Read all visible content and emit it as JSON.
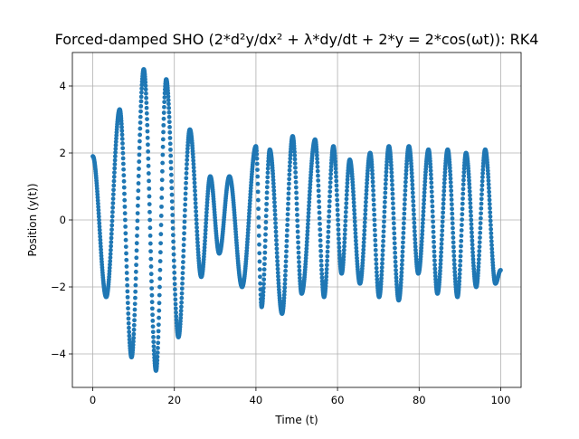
{
  "chart_data": {
    "type": "scatter",
    "title": "Forced-damped SHO (2*d²y/dx² + λ*dy/dt + 2*y = 2*cos(ωt)): RK4",
    "xlabel": "Time (t)",
    "ylabel": "Position (y(t))",
    "xlim": [
      -5,
      105
    ],
    "ylim": [
      -5,
      5
    ],
    "x_ticks": [
      0,
      20,
      40,
      60,
      80,
      100
    ],
    "y_ticks": [
      -4,
      -2,
      0,
      2,
      4
    ],
    "x_tick_labels": [
      "0",
      "20",
      "40",
      "60",
      "80",
      "100"
    ],
    "y_tick_labels": [
      "−4",
      "−2",
      "0",
      "2",
      "4"
    ],
    "grid": true,
    "legend": "none",
    "series": [
      {
        "color": "#1f77b4",
        "extrema": [
          [
            0.0,
            1.9
          ],
          [
            3.3,
            -2.3
          ],
          [
            6.6,
            3.3
          ],
          [
            9.5,
            -4.1
          ],
          [
            12.5,
            4.5
          ],
          [
            15.5,
            -4.5
          ],
          [
            18.0,
            4.2
          ],
          [
            21.0,
            -3.5
          ],
          [
            23.8,
            2.7
          ],
          [
            26.6,
            -1.7
          ],
          [
            28.8,
            1.3
          ],
          [
            31.0,
            -1.0
          ],
          [
            33.5,
            1.3
          ],
          [
            36.6,
            -2.0
          ],
          [
            40.0,
            2.2
          ],
          [
            41.4,
            -2.6
          ],
          [
            43.4,
            2.1
          ],
          [
            46.4,
            -2.8
          ],
          [
            49.0,
            2.5
          ],
          [
            51.2,
            -2.2
          ],
          [
            54.5,
            2.4
          ],
          [
            56.7,
            -2.3
          ],
          [
            59.0,
            2.2
          ],
          [
            61.0,
            -1.6
          ],
          [
            63.0,
            1.8
          ],
          [
            65.5,
            -1.9
          ],
          [
            68.0,
            2.0
          ],
          [
            70.2,
            -2.3
          ],
          [
            72.6,
            2.2
          ],
          [
            75.0,
            -2.4
          ],
          [
            77.5,
            2.2
          ],
          [
            79.8,
            -1.6
          ],
          [
            82.3,
            2.1
          ],
          [
            84.5,
            -2.2
          ],
          [
            87.0,
            2.1
          ],
          [
            89.4,
            -2.3
          ],
          [
            91.5,
            2.0
          ],
          [
            94.0,
            -2.0
          ],
          [
            96.2,
            2.1
          ],
          [
            98.7,
            -1.9
          ],
          [
            100.0,
            -1.5
          ]
        ],
        "dt": 0.05
      }
    ]
  }
}
